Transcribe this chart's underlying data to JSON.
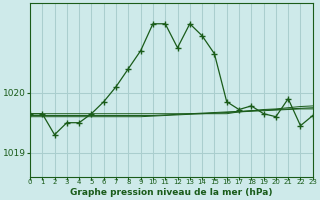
{
  "background_color": "#ceeaea",
  "grid_color": "#aacece",
  "line_color": "#1a5c1a",
  "xlim": [
    0,
    23
  ],
  "ylim": [
    1018.6,
    1021.5
  ],
  "yticks": [
    1019,
    1020
  ],
  "xticks": [
    0,
    1,
    2,
    3,
    4,
    5,
    6,
    7,
    8,
    9,
    10,
    11,
    12,
    13,
    14,
    15,
    16,
    17,
    18,
    19,
    20,
    21,
    22,
    23
  ],
  "title": "Graphe pression niveau de la mer (hPa)",
  "hours": [
    0,
    1,
    2,
    3,
    4,
    5,
    6,
    7,
    8,
    9,
    10,
    11,
    12,
    13,
    14,
    15,
    16,
    17,
    18,
    19,
    20,
    21,
    22,
    23
  ],
  "main_line": [
    1019.65,
    1019.65,
    1019.3,
    1019.5,
    1019.5,
    1019.65,
    1019.85,
    1020.1,
    1020.4,
    1020.7,
    1021.15,
    1021.15,
    1020.75,
    1021.15,
    1020.95,
    1020.65,
    1019.85,
    1019.72,
    1019.78,
    1019.65,
    1019.6,
    1019.9,
    1019.45,
    1019.62
  ],
  "flat1": [
    1019.65,
    1019.65,
    1019.65,
    1019.65,
    1019.65,
    1019.65,
    1019.65,
    1019.65,
    1019.65,
    1019.65,
    1019.65,
    1019.65,
    1019.65,
    1019.65,
    1019.65,
    1019.65,
    1019.65,
    1019.68,
    1019.7,
    1019.72,
    1019.73,
    1019.75,
    1019.77,
    1019.78
  ],
  "flat2": [
    1019.62,
    1019.62,
    1019.62,
    1019.62,
    1019.62,
    1019.62,
    1019.62,
    1019.62,
    1019.62,
    1019.62,
    1019.62,
    1019.63,
    1019.64,
    1019.65,
    1019.66,
    1019.67,
    1019.68,
    1019.69,
    1019.7,
    1019.71,
    1019.72,
    1019.73,
    1019.74,
    1019.75
  ],
  "flat3": [
    1019.6,
    1019.6,
    1019.6,
    1019.6,
    1019.6,
    1019.6,
    1019.6,
    1019.6,
    1019.6,
    1019.6,
    1019.61,
    1019.62,
    1019.63,
    1019.64,
    1019.65,
    1019.66,
    1019.67,
    1019.68,
    1019.69,
    1019.7,
    1019.71,
    1019.72,
    1019.73,
    1019.73
  ],
  "figsize": [
    3.2,
    2.0
  ],
  "dpi": 100
}
